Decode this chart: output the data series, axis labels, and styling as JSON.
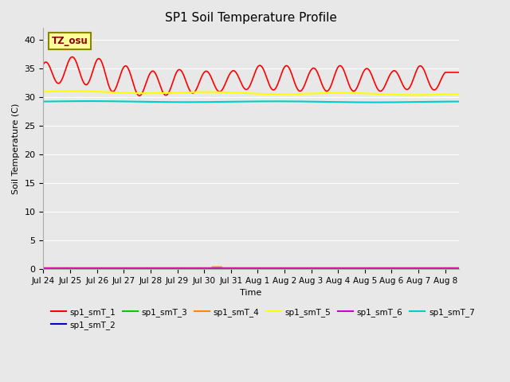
{
  "title": "SP1 Soil Temperature Profile",
  "xlabel": "Time",
  "ylabel": "Soil Temperature (C)",
  "annotation": "TZ_osu",
  "ylim": [
    0,
    42
  ],
  "yticks": [
    0,
    5,
    10,
    15,
    20,
    25,
    30,
    35,
    40
  ],
  "xlim": [
    0,
    15.5
  ],
  "xtick_labels": [
    "Jul 24",
    "Jul 25",
    "Jul 26",
    "Jul 27",
    "Jul 28",
    "Jul 29",
    "Jul 30",
    "Jul 31",
    "Aug 1",
    "Aug 2",
    "Aug 3",
    "Aug 4",
    "Aug 5",
    "Aug 6",
    "Aug 7",
    "Aug 8"
  ],
  "background_color": "#e8e8e8",
  "plot_bg_color": "#e8e8e8",
  "grid_color": "#ffffff",
  "series": [
    {
      "name": "sp1_smT_1",
      "color": "#ff0000",
      "linewidth": 1.2
    },
    {
      "name": "sp1_smT_2",
      "color": "#0000cc",
      "linewidth": 1.2
    },
    {
      "name": "sp1_smT_3",
      "color": "#00cc00",
      "linewidth": 1.2
    },
    {
      "name": "sp1_smT_4",
      "color": "#ff8800",
      "linewidth": 1.2
    },
    {
      "name": "sp1_smT_5",
      "color": "#ffff00",
      "linewidth": 1.5
    },
    {
      "name": "sp1_smT_6",
      "color": "#cc00cc",
      "linewidth": 1.2
    },
    {
      "name": "sp1_smT_7",
      "color": "#00cccc",
      "linewidth": 1.5
    }
  ],
  "figsize": [
    6.4,
    4.8
  ],
  "dpi": 100
}
